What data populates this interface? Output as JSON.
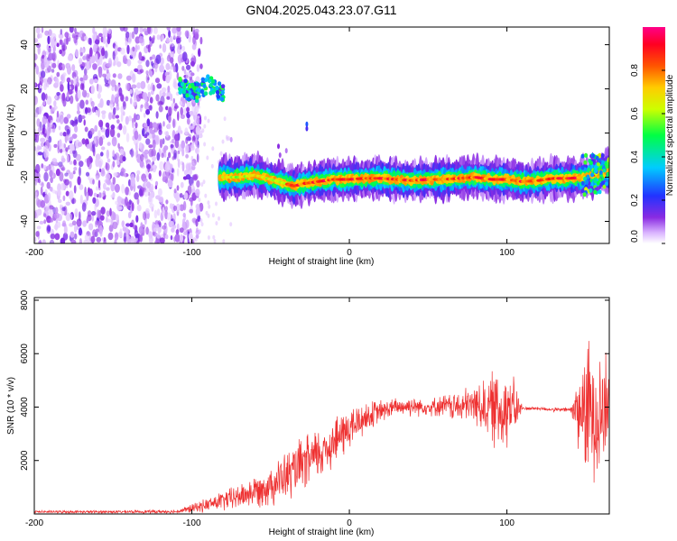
{
  "figure_title": "GN04.2025.043.23.07.G11",
  "colors": {
    "snr_line": "#ee3030",
    "background": "#ffffff",
    "axis": "#000000"
  },
  "chart_data": [
    {
      "type": "heatmap",
      "title": "GN04.2025.043.23.07.G11",
      "xlabel": "Height of straight line (km)",
      "ylabel": "Frequency (Hz)",
      "xlim": [
        -200,
        165
      ],
      "ylim": [
        -50,
        48
      ],
      "x_ticks": [
        -200,
        -100,
        0,
        100
      ],
      "y_ticks": [
        40,
        20,
        0,
        -20,
        -40
      ],
      "colorbar": {
        "label": "Normalized spectral amplitude",
        "range": [
          0,
          1
        ],
        "ticks": [
          0.0,
          0.2,
          0.4,
          0.6,
          0.8
        ],
        "colormap": "rainbow (white, purple, blue, cyan, green, yellow, orange, red, magenta)"
      },
      "regions": [
        {
          "description": "scattered noise",
          "x_range": [
            -200,
            -98
          ],
          "freq_range": [
            -50,
            48
          ],
          "amplitude": 0.1
        },
        {
          "description": "signal blob",
          "x_range": [
            -108,
            -80
          ],
          "freq_range": [
            15,
            26
          ],
          "center_freq": 20,
          "amplitude": 0.45
        },
        {
          "description": "signal track",
          "x_range": [
            -82,
            165
          ],
          "center_freq": -20,
          "amplitude": 0.9
        }
      ],
      "track": {
        "x": [
          -82,
          -70,
          -60,
          -50,
          -45,
          -40,
          -35,
          -30,
          -20,
          -10,
          0,
          10,
          20,
          30,
          40,
          50,
          60,
          70,
          80,
          90,
          100,
          110,
          120,
          130,
          140,
          150,
          160,
          165
        ],
        "freq": [
          -20,
          -20,
          -19,
          -21,
          -22,
          -23,
          -24,
          -23,
          -22,
          -21,
          -21,
          -20.5,
          -20.5,
          -21,
          -21.5,
          -21,
          -21,
          -20.5,
          -20,
          -21,
          -21,
          -22,
          -21.5,
          -20.5,
          -20.5,
          -20,
          -18,
          -17
        ]
      }
    },
    {
      "type": "line",
      "title": "",
      "xlabel": "Height of straight line (km)",
      "ylabel": "SNR (10 * v/v)",
      "xlim": [
        -200,
        165
      ],
      "ylim": [
        0,
        8100
      ],
      "x_ticks": [
        -200,
        -100,
        0,
        100
      ],
      "y_ticks": [
        2000,
        4000,
        6000,
        8000
      ],
      "envelope": {
        "x": [
          -200,
          -150,
          -110,
          -100,
          -90,
          -80,
          -70,
          -60,
          -50,
          -40,
          -30,
          -20,
          -10,
          0,
          10,
          20,
          30,
          40,
          50,
          60,
          70,
          80,
          90,
          95,
          100,
          105,
          110,
          120,
          130,
          140,
          150,
          155,
          160,
          165
        ],
        "mean": [
          80,
          80,
          90,
          200,
          350,
          500,
          650,
          850,
          1100,
          1400,
          1800,
          2200,
          2700,
          3200,
          3600,
          3850,
          4000,
          4050,
          4000,
          4050,
          4000,
          4100,
          4000,
          3900,
          4050,
          3950,
          3950,
          3950,
          3900,
          3900,
          3850,
          3900,
          3900,
          3900
        ],
        "amp": [
          60,
          60,
          80,
          200,
          300,
          450,
          550,
          700,
          900,
          1100,
          1200,
          1200,
          1100,
          1000,
          700,
          500,
          400,
          450,
          350,
          500,
          700,
          900,
          1500,
          2000,
          1800,
          1200,
          80,
          80,
          90,
          100,
          3000,
          3000,
          3000,
          2200
        ]
      }
    }
  ]
}
